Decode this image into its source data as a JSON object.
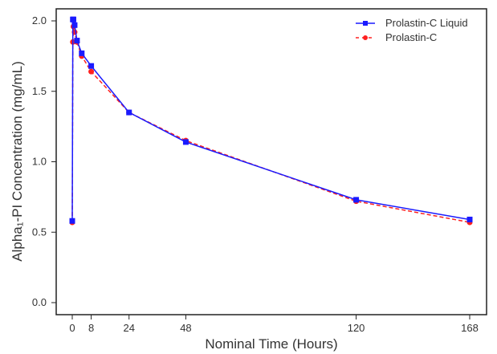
{
  "chart_data": {
    "type": "line",
    "title": "",
    "xlabel": "Nominal Time (Hours)",
    "ylabel": "Alpha₁-PI Concentration (mg/mL)",
    "xlim": [
      -6,
      175
    ],
    "ylim": [
      -0.06,
      2.08
    ],
    "xticks": [
      0,
      8,
      24,
      48,
      120,
      168
    ],
    "yticks": [
      0.0,
      0.5,
      1.0,
      1.5,
      2.0
    ],
    "ytick_labels": [
      "0.0",
      "0.5",
      "1.0",
      "1.5",
      "2.0"
    ],
    "grid": false,
    "legend_position": "top-right",
    "x": [
      0,
      0.25,
      0.5,
      1,
      2,
      4,
      8,
      24,
      48,
      120,
      168
    ],
    "series": [
      {
        "name": "Prolastin-C Liquid",
        "color": "#1a1aff",
        "line": "solid",
        "marker": "square",
        "values": [
          0.58,
          2.01,
          2.01,
          1.97,
          1.86,
          1.77,
          1.68,
          1.35,
          1.14,
          0.73,
          0.59
        ]
      },
      {
        "name": "Prolastin-C",
        "color": "#ff2020",
        "line": "dashed",
        "marker": "circle",
        "values": [
          0.57,
          1.85,
          1.96,
          1.92,
          1.85,
          1.75,
          1.64,
          1.35,
          1.15,
          0.72,
          0.57
        ]
      }
    ]
  }
}
